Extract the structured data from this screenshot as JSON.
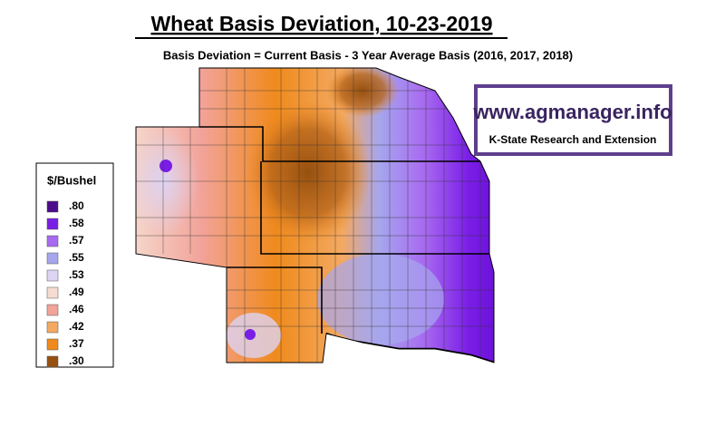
{
  "title": "Wheat Basis Deviation, 10-23-2019",
  "subtitle": "Basis Deviation = Current Basis - 3 Year Average Basis (2016, 2017, 2018)",
  "logo": {
    "url": "www.agmanager.info",
    "org": "K-State Research and Extension"
  },
  "legend": {
    "title": "$/Bushel",
    "items": [
      {
        "label": ".80",
        "color": "#4b0b8a"
      },
      {
        "label": ".58",
        "color": "#7a1ee6"
      },
      {
        "label": ".57",
        "color": "#a86af0"
      },
      {
        "label": ".55",
        "color": "#a6a6ee"
      },
      {
        "label": ".53",
        "color": "#ddd3f3"
      },
      {
        "label": ".49",
        "color": "#f6dcd0"
      },
      {
        "label": ".46",
        "color": "#f2a39a"
      },
      {
        "label": ".42",
        "color": "#f3a962"
      },
      {
        "label": ".37",
        "color": "#f08a1c"
      },
      {
        "label": ".30",
        "color": "#96500f"
      }
    ]
  }
}
